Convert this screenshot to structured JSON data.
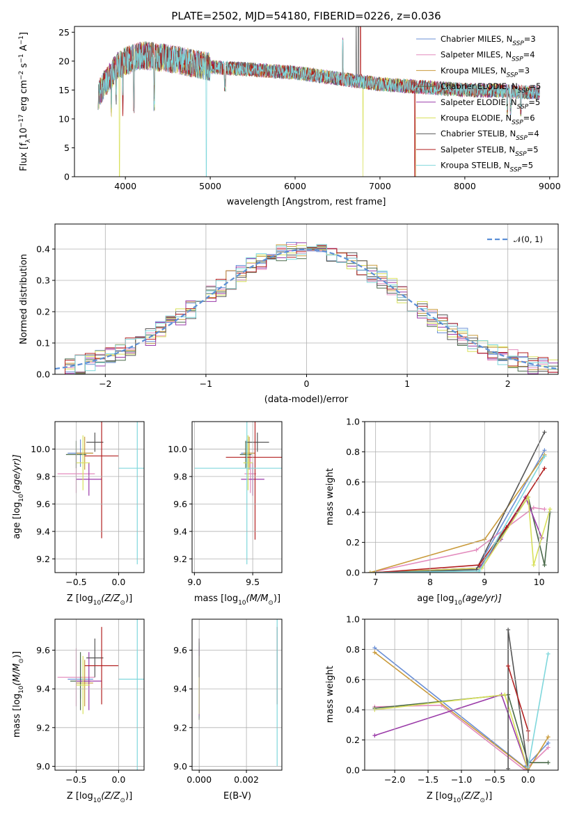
{
  "title": "PLATE=2502, MJD=54180, FIBERID=0226, z=0.036",
  "colors": [
    "#6a8fd6",
    "#e38bbd",
    "#c99a3a",
    "#4a6a4a",
    "#9a3aa8",
    "#d8e05a",
    "#555555",
    "#b21f1f",
    "#7fd7dc"
  ],
  "legend": {
    "models": [
      {
        "base": "Chabrier MILES, N",
        "sub": "SSP",
        "tail": "=3"
      },
      {
        "base": "Salpeter MILES, N",
        "sub": "SSP",
        "tail": "=4"
      },
      {
        "base": "Kroupa MILES, N",
        "sub": "SSP",
        "tail": "=3"
      },
      {
        "base": "Chabrier ELODIE, N",
        "sub": "SSP",
        "tail": "=5"
      },
      {
        "base": "Salpeter ELODIE, N",
        "sub": "SSP",
        "tail": "=5"
      },
      {
        "base": "Kroupa ELODIE, N",
        "sub": "SSP",
        "tail": "=6"
      },
      {
        "base": "Chabrier STELIB, N",
        "sub": "SSP",
        "tail": "=4"
      },
      {
        "base": "Salpeter STELIB, N",
        "sub": "SSP",
        "tail": "=5"
      },
      {
        "base": "Kroupa STELIB, N",
        "sub": "SSP",
        "tail": "=5"
      }
    ],
    "normal": "𝒩(0, 1)"
  },
  "chart_data": [
    {
      "id": "spectrum",
      "type": "line",
      "xlabel": "wavelength [Angstrom, rest frame]",
      "ylabel": "Flux [f",
      "ylabel_tail": "10",
      "ylabel_sup": "−17",
      "ylabel_rest": " erg cm",
      "ylabel_sup2": "−2",
      "ylabel_rest2": " s",
      "ylabel_sup3": "−1",
      "ylabel_rest3": " A",
      "ylabel_sup4": "−1",
      "ylabel_close": "]",
      "xlim": [
        3400,
        9100
      ],
      "ylim": [
        0,
        26
      ],
      "xticks": [
        "4000",
        "5000",
        "6000",
        "7000",
        "8000",
        "9000"
      ],
      "yticks": [
        "0",
        "5",
        "10",
        "15",
        "20",
        "25"
      ],
      "continuum": [
        [
          3680,
          14
        ],
        [
          3750,
          16
        ],
        [
          3900,
          19
        ],
        [
          4000,
          20
        ],
        [
          4200,
          21
        ],
        [
          4500,
          20.5
        ],
        [
          5000,
          19
        ],
        [
          5500,
          18.5
        ],
        [
          6000,
          18
        ],
        [
          6500,
          17
        ],
        [
          7000,
          16
        ],
        [
          7500,
          15.5
        ],
        [
          8000,
          15
        ],
        [
          8500,
          14.8
        ],
        [
          8880,
          14.5
        ]
      ]
    },
    {
      "id": "residuals",
      "type": "histogram",
      "xlabel": "(data-model)/error",
      "ylabel": "Normed distribution",
      "xlim": [
        -2.5,
        2.5
      ],
      "ylim": [
        0,
        0.48
      ],
      "xticks": [
        "−2",
        "−1",
        "0",
        "1",
        "2"
      ],
      "yticks": [
        "0.0",
        "0.1",
        "0.2",
        "0.3",
        "0.4"
      ]
    },
    {
      "id": "age-vs-Z",
      "type": "scatter",
      "xlabel": "Z [log",
      "xlabel_sub": "10",
      "xlabel_rest": "(Z/Z",
      "xlabel_sub2": "⊙",
      "xlabel_close": ")]",
      "ylabel": "age  [log",
      "ylabel_sub": "10",
      "ylabel_rest": "(age/yr)]",
      "xlim": [
        -0.75,
        0.3
      ],
      "ylim": [
        9.1,
        10.2
      ],
      "xticks": [
        "−0.5",
        "0.0"
      ],
      "yticks": [
        "9.2",
        "9.4",
        "9.6",
        "9.8",
        "10.0"
      ],
      "points": [
        {
          "x": -0.45,
          "y": 9.97,
          "ex": 0.15,
          "ey": 0.1
        },
        {
          "x": -0.5,
          "y": 9.82,
          "ex": 0.22,
          "ey": 0.14
        },
        {
          "x": -0.4,
          "y": 9.97,
          "ex": 0.1,
          "ey": 0.12
        },
        {
          "x": -0.5,
          "y": 9.96,
          "ex": 0.12,
          "ey": 0.1
        },
        {
          "x": -0.35,
          "y": 9.78,
          "ex": 0.15,
          "ey": 0.12
        },
        {
          "x": -0.42,
          "y": 9.9,
          "ex": 0.08,
          "ey": 0.2
        },
        {
          "x": -0.28,
          "y": 10.05,
          "ex": 0.1,
          "ey": 0.07
        },
        {
          "x": -0.2,
          "y": 9.95,
          "ex": 0.2,
          "ey": 0.6
        },
        {
          "x": 0.22,
          "y": 9.86,
          "ex": 0.22,
          "ey": 0.7
        }
      ]
    },
    {
      "id": "age-vs-mass",
      "type": "scatter",
      "xlabel": "mass [log",
      "xlabel_sub": "10",
      "xlabel_rest": "(M/M",
      "xlabel_sub2": "⊙",
      "xlabel_close": ")]",
      "xlim": [
        8.98,
        9.75
      ],
      "ylim": [
        9.1,
        10.2
      ],
      "xticks": [
        "9.0",
        "9.5"
      ],
      "yticks": [
        "9.2",
        "9.4",
        "9.6",
        "9.8",
        "10.0"
      ],
      "points": [
        {
          "x": 9.45,
          "y": 9.97,
          "ex": 0.05,
          "ey": 0.1
        },
        {
          "x": 9.48,
          "y": 9.82,
          "ex": 0.05,
          "ey": 0.14
        },
        {
          "x": 9.47,
          "y": 9.97,
          "ex": 0.05,
          "ey": 0.12
        },
        {
          "x": 9.44,
          "y": 9.96,
          "ex": 0.05,
          "ey": 0.1
        },
        {
          "x": 9.5,
          "y": 9.78,
          "ex": 0.1,
          "ey": 0.12
        },
        {
          "x": 9.46,
          "y": 9.9,
          "ex": 0.04,
          "ey": 0.2
        },
        {
          "x": 9.54,
          "y": 10.05,
          "ex": 0.1,
          "ey": 0.07
        },
        {
          "x": 9.52,
          "y": 9.94,
          "ex": 0.25,
          "ey": 0.6
        },
        {
          "x": 9.45,
          "y": 9.86,
          "ex": 0.45,
          "ey": 0.7
        }
      ]
    },
    {
      "id": "weight-vs-age",
      "type": "line",
      "xlabel": "age  [log",
      "xlabel_sub": "10",
      "xlabel_rest": "(age/yr)]",
      "ylabel": "mass weight",
      "xlim": [
        6.8,
        10.35
      ],
      "ylim": [
        0,
        1.0
      ],
      "xticks": [
        "7",
        "8",
        "9",
        "10"
      ],
      "yticks": [
        "0.0",
        "0.2",
        "0.4",
        "0.6",
        "0.8",
        "1.0"
      ],
      "series": [
        {
          "x": [
            6.9,
            8.85,
            10.1
          ],
          "y": [
            0.0,
            0.02,
            0.81
          ]
        },
        {
          "x": [
            6.9,
            8.85,
            9.9,
            10.1
          ],
          "y": [
            0.0,
            0.15,
            0.43,
            0.42
          ]
        },
        {
          "x": [
            6.9,
            9.0,
            10.1
          ],
          "y": [
            0.0,
            0.22,
            0.78
          ]
        },
        {
          "x": [
            7.0,
            8.9,
            9.8,
            10.1,
            10.2
          ],
          "y": [
            0.0,
            0.03,
            0.5,
            0.05,
            0.4
          ]
        },
        {
          "x": [
            6.9,
            8.9,
            9.3,
            9.75,
            10.05
          ],
          "y": [
            0.0,
            0.03,
            0.22,
            0.5,
            0.23
          ]
        },
        {
          "x": [
            6.9,
            8.95,
            9.8,
            9.9,
            10.2
          ],
          "y": [
            0.0,
            0.03,
            0.5,
            0.05,
            0.42
          ]
        },
        {
          "x": [
            7.0,
            8.85,
            10.1
          ],
          "y": [
            0.0,
            0.02,
            0.93
          ]
        },
        {
          "x": [
            7.0,
            8.9,
            9.4,
            10.1
          ],
          "y": [
            0.0,
            0.05,
            0.3,
            0.69
          ]
        },
        {
          "x": [
            7.0,
            8.9,
            10.1
          ],
          "y": [
            0.0,
            0.01,
            0.77
          ]
        }
      ]
    },
    {
      "id": "mass-vs-Z",
      "type": "scatter",
      "xlabel": "Z [log",
      "xlabel_sub": "10",
      "xlabel_rest": "(Z/Z",
      "xlabel_sub2": "⊙",
      "xlabel_close": ")]",
      "ylabel": "mass [log",
      "ylabel_sub": "10",
      "ylabel_rest": "(M/M",
      "ylabel_sub2": "⊙",
      "ylabel_close": ")]",
      "xlim": [
        -0.75,
        0.3
      ],
      "ylim": [
        8.98,
        9.76
      ],
      "xticks": [
        "−0.5",
        "0.0"
      ],
      "yticks": [
        "9.0",
        "9.2",
        "9.4",
        "9.6"
      ],
      "points": [
        {
          "x": -0.45,
          "y": 9.45,
          "ex": 0.15,
          "ey": 0.1
        },
        {
          "x": -0.5,
          "y": 9.46,
          "ex": 0.22,
          "ey": 0.15
        },
        {
          "x": -0.4,
          "y": 9.43,
          "ex": 0.1,
          "ey": 0.12
        },
        {
          "x": -0.45,
          "y": 9.44,
          "ex": 0.12,
          "ey": 0.15
        },
        {
          "x": -0.35,
          "y": 9.44,
          "ex": 0.15,
          "ey": 0.15
        },
        {
          "x": -0.42,
          "y": 9.42,
          "ex": 0.08,
          "ey": 0.15
        },
        {
          "x": -0.28,
          "y": 9.56,
          "ex": 0.1,
          "ey": 0.1
        },
        {
          "x": -0.2,
          "y": 9.52,
          "ex": 0.2,
          "ey": 0.2
        },
        {
          "x": 0.22,
          "y": 9.45,
          "ex": 0.22,
          "ey": 0.5
        }
      ]
    },
    {
      "id": "mass-vs-ebv",
      "type": "scatter",
      "xlabel": "E(B-V)",
      "xlim": [
        -0.0003,
        0.0035
      ],
      "ylim": [
        8.98,
        9.76
      ],
      "xticks": [
        "0.000",
        "0.002"
      ],
      "yticks": [
        "9.0",
        "9.2",
        "9.4",
        "9.6"
      ],
      "points": [
        {
          "x": 0.0,
          "y": 9.45,
          "ey": 0.2
        },
        {
          "x": 0.0,
          "y": 9.46,
          "ey": 0.2
        },
        {
          "x": 0.0,
          "y": 9.43,
          "ey": 0.15
        },
        {
          "x": 0.0,
          "y": 9.44,
          "ey": 0.2
        },
        {
          "x": 0.0,
          "y": 9.44,
          "ey": 0.18
        },
        {
          "x": 0.0,
          "y": 9.42,
          "ey": 0.15
        },
        {
          "x": 0.0,
          "y": 9.56,
          "ey": 0.1
        },
        {
          "x": 0.0033,
          "y": 9.52,
          "ey": 0.2
        },
        {
          "x": 0.0033,
          "y": 9.45,
          "ey": 0.45
        }
      ]
    },
    {
      "id": "weight-vs-Z",
      "type": "line",
      "xlabel": "Z [log",
      "xlabel_sub": "10",
      "xlabel_rest": "(Z/Z",
      "xlabel_sub2": "⊙",
      "xlabel_close": ")]",
      "ylabel": "mass weight",
      "xlim": [
        -2.45,
        0.45
      ],
      "ylim": [
        0,
        1.0
      ],
      "xticks": [
        "−2.0",
        "−1.5",
        "−1.0",
        "−0.5",
        "0.0"
      ],
      "yticks": [
        "0.0",
        "0.2",
        "0.4",
        "0.6",
        "0.8",
        "1.0"
      ],
      "series": [
        {
          "x": [
            -2.3,
            -0.05,
            0.3
          ],
          "y": [
            0.81,
            0.02,
            0.18
          ]
        },
        {
          "x": [
            -2.3,
            -1.3,
            -0.05,
            0.3
          ],
          "y": [
            0.42,
            0.43,
            0.0,
            0.15
          ]
        },
        {
          "x": [
            -2.3,
            0.0,
            0.3
          ],
          "y": [
            0.78,
            0.0,
            0.22
          ]
        },
        {
          "x": [
            -2.3,
            -0.3,
            0.0,
            0.3
          ],
          "y": [
            0.41,
            0.5,
            0.05,
            0.05
          ]
        },
        {
          "x": [
            -2.3,
            -0.4,
            0.0
          ],
          "y": [
            0.23,
            0.5,
            0.0
          ]
        },
        {
          "x": [
            -2.3,
            -0.35,
            0.0
          ],
          "y": [
            0.4,
            0.5,
            0.0
          ]
        },
        {
          "x": [
            -0.3,
            -0.3,
            0.0
          ],
          "y": [
            0.01,
            0.93,
            0.0
          ]
        },
        {
          "x": [
            -0.3,
            0.0,
            0.0
          ],
          "y": [
            0.69,
            0.26,
            0.2
          ]
        },
        {
          "x": [
            0.0,
            0.3
          ],
          "y": [
            0.02,
            0.77
          ]
        }
      ]
    }
  ]
}
